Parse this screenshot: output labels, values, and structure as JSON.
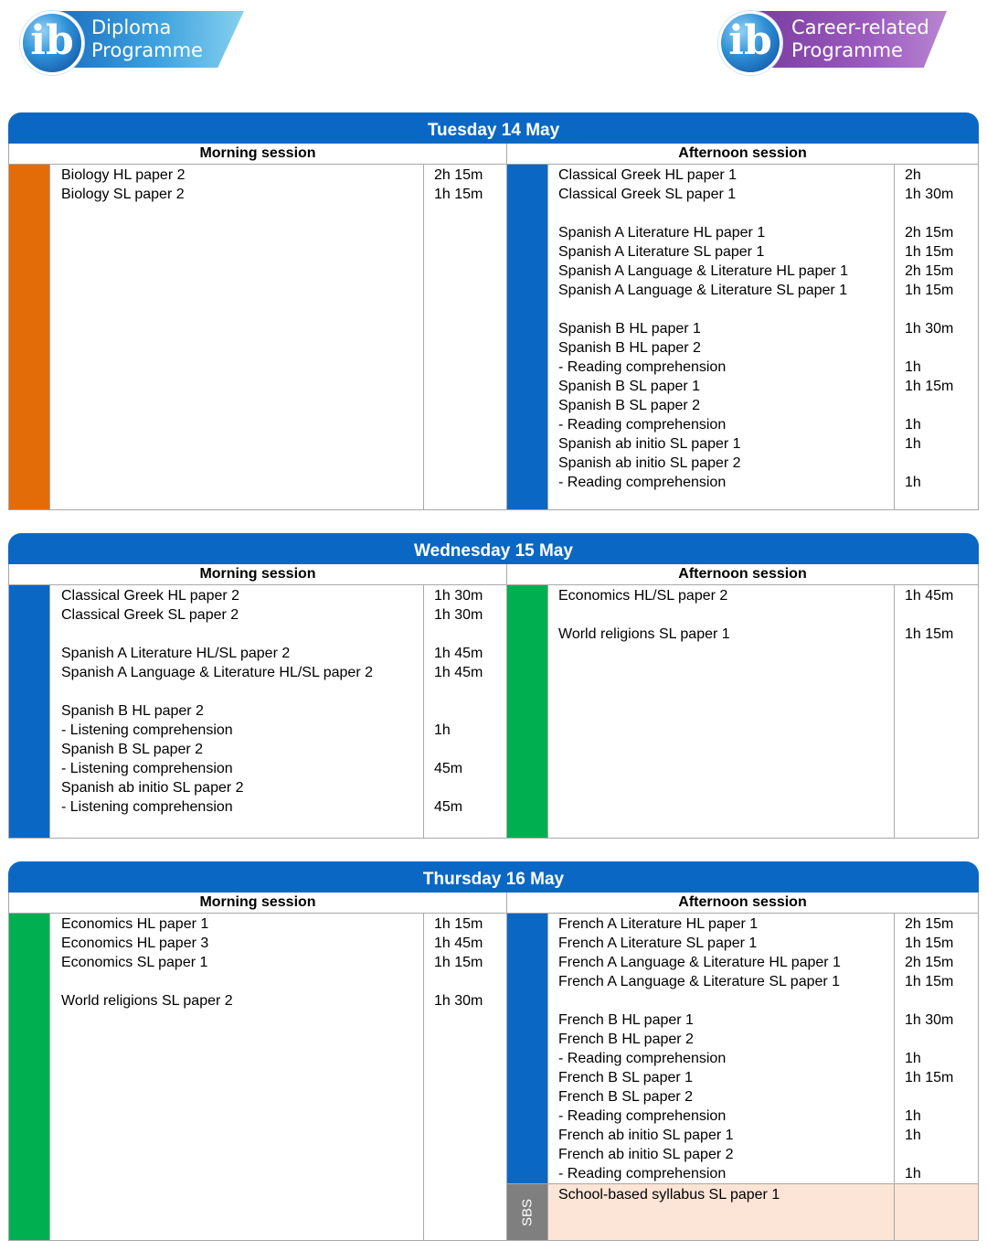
{
  "logos": {
    "dp": {
      "letter": "ib",
      "line1": "Diploma",
      "line2": "Programme"
    },
    "cp": {
      "letter": "ib",
      "line1": "Career-related",
      "line2": "Programme"
    }
  },
  "days": [
    {
      "title": "Tuesday 14 May",
      "morning_label": "Morning session",
      "afternoon_label": "Afternoon session",
      "morning_color": "#e36c09",
      "afternoon_color": "#0a68c4",
      "morning_lines": [
        {
          "s": "Biology HL paper 2",
          "t": "2h 15m"
        },
        {
          "s": "Biology SL paper 2",
          "t": "1h 15m"
        }
      ],
      "afternoon_lines": [
        {
          "s": "Classical Greek HL paper 1",
          "t": "2h"
        },
        {
          "s": "Classical Greek SL paper 1",
          "t": "1h 30m"
        },
        {
          "s": "",
          "t": ""
        },
        {
          "s": "Spanish A Literature HL paper 1",
          "t": "2h 15m"
        },
        {
          "s": "Spanish A Literature SL paper 1",
          "t": "1h 15m"
        },
        {
          "s": "Spanish A Language & Literature HL paper 1",
          "t": "2h 15m"
        },
        {
          "s": "Spanish A Language & Literature SL paper 1",
          "t": "1h 15m"
        },
        {
          "s": "",
          "t": ""
        },
        {
          "s": "Spanish B HL paper 1",
          "t": "1h 30m"
        },
        {
          "s": "Spanish B HL paper 2",
          "t": ""
        },
        {
          "s": "- Reading comprehension",
          "t": "1h"
        },
        {
          "s": "Spanish B SL paper 1",
          "t": "1h 15m"
        },
        {
          "s": "Spanish B SL paper 2",
          "t": ""
        },
        {
          "s": "- Reading comprehension",
          "t": "1h"
        },
        {
          "s": "Spanish ab initio SL paper 1",
          "t": "1h"
        },
        {
          "s": "Spanish ab initio SL paper 2",
          "t": ""
        },
        {
          "s": "- Reading comprehension",
          "t": "1h"
        }
      ]
    },
    {
      "title": "Wednesday 15 May",
      "morning_label": "Morning session",
      "afternoon_label": "Afternoon session",
      "morning_color": "#0a68c4",
      "afternoon_color": "#00b050",
      "morning_lines": [
        {
          "s": "Classical Greek HL paper 2",
          "t": "1h 30m"
        },
        {
          "s": "Classical Greek SL paper 2",
          "t": "1h 30m"
        },
        {
          "s": "",
          "t": ""
        },
        {
          "s": "Spanish A Literature HL/SL paper 2",
          "t": "1h 45m"
        },
        {
          "s": "Spanish A Language & Literature HL/SL paper 2",
          "t": "1h 45m"
        },
        {
          "s": "",
          "t": ""
        },
        {
          "s": "Spanish B HL paper 2",
          "t": ""
        },
        {
          "s": "- Listening comprehension",
          "t": "1h"
        },
        {
          "s": "Spanish B SL paper 2",
          "t": ""
        },
        {
          "s": "- Listening comprehension",
          "t": "45m"
        },
        {
          "s": "Spanish ab initio SL paper 2",
          "t": ""
        },
        {
          "s": "- Listening comprehension",
          "t": "45m"
        }
      ],
      "afternoon_lines": [
        {
          "s": "Economics HL/SL paper 2",
          "t": "1h 45m"
        },
        {
          "s": "",
          "t": ""
        },
        {
          "s": "World religions SL paper 1",
          "t": "1h 15m"
        }
      ]
    },
    {
      "title": "Thursday 16 May",
      "morning_label": "Morning session",
      "afternoon_label": "Afternoon session",
      "morning_color": "#00b050",
      "afternoon_color": "#0a68c4",
      "morning_lines": [
        {
          "s": "Economics HL paper 1",
          "t": "1h 15m"
        },
        {
          "s": "Economics HL paper 3",
          "t": "1h 45m"
        },
        {
          "s": "Economics SL paper 1",
          "t": "1h 15m"
        },
        {
          "s": "",
          "t": ""
        },
        {
          "s": "World religions SL paper 2",
          "t": "1h 30m"
        }
      ],
      "afternoon_lines": [
        {
          "s": "French A Literature HL paper 1",
          "t": "2h 15m"
        },
        {
          "s": "French A Literature SL paper 1",
          "t": "1h 15m"
        },
        {
          "s": "French A Language & Literature HL paper 1",
          "t": "2h 15m"
        },
        {
          "s": "French A Language & Literature SL paper 1",
          "t": "1h 15m"
        },
        {
          "s": "",
          "t": ""
        },
        {
          "s": "French B HL paper 1",
          "t": "1h 30m"
        },
        {
          "s": "French B HL paper 2",
          "t": ""
        },
        {
          "s": "- Reading comprehension",
          "t": "1h"
        },
        {
          "s": "French B SL paper 1",
          "t": "1h 15m"
        },
        {
          "s": "French B SL paper 2",
          "t": ""
        },
        {
          "s": "- Reading comprehension",
          "t": "1h"
        },
        {
          "s": "French ab initio SL paper 1",
          "t": "1h"
        },
        {
          "s": "French ab initio SL paper 2",
          "t": ""
        },
        {
          "s": "- Reading comprehension",
          "t": "1h"
        }
      ],
      "sbs": {
        "label": "SBS",
        "subject": "School-based syllabus SL paper 1",
        "time": "",
        "color": "#7f7f7f",
        "fill": "#fce4d6"
      }
    }
  ]
}
